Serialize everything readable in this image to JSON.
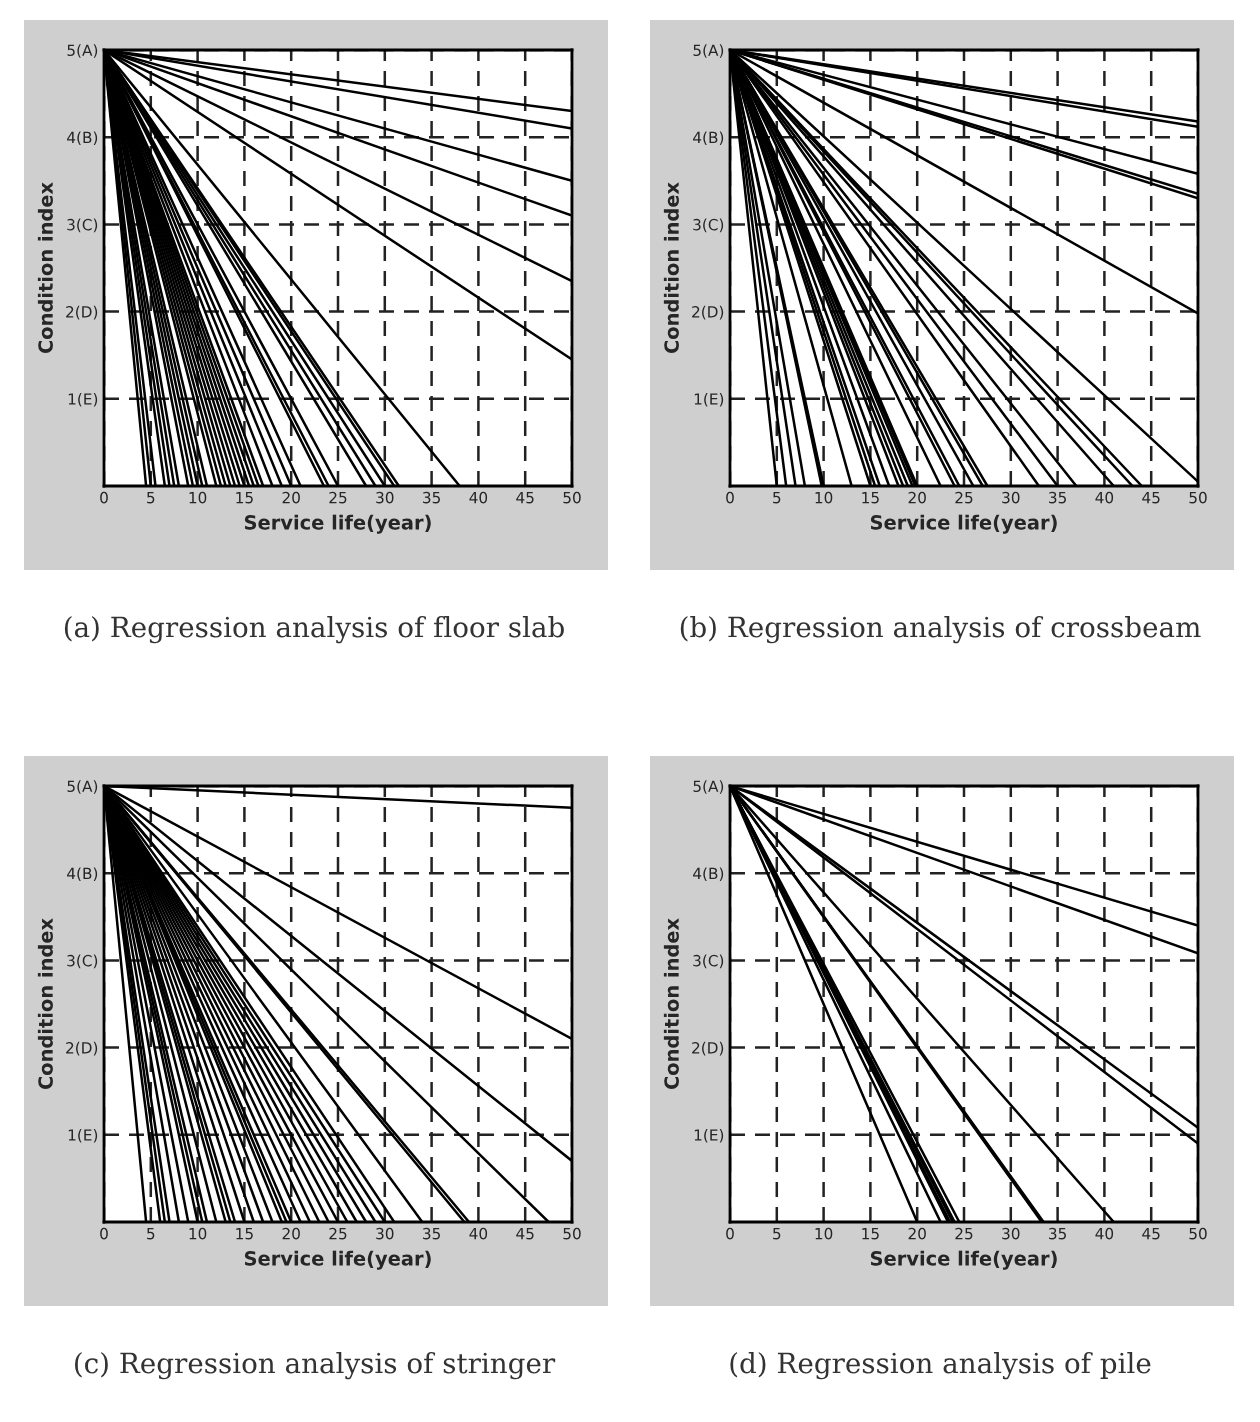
{
  "chart_data": [
    {
      "type": "line",
      "xlabel": "Service life(year)",
      "ylabel": "Condition index",
      "annotations": [
        "(a) Regression analysis of floor slab"
      ],
      "xlim": [
        0,
        50
      ],
      "ylim": [
        0,
        5
      ],
      "xticks": [
        0,
        5,
        10,
        15,
        20,
        25,
        30,
        35,
        40,
        45,
        50
      ],
      "yticks": [
        {
          "value": 1,
          "label": "1(E)"
        },
        {
          "value": 2,
          "label": "2(D)"
        },
        {
          "value": 3,
          "label": "3(C)"
        },
        {
          "value": 4,
          "label": "4(B)"
        },
        {
          "value": 5,
          "label": "5(A)"
        }
      ],
      "grid": true,
      "line_style": "solid",
      "marker": "none",
      "series": [
        {
          "color": "#000000",
          "x": [
            0,
            50
          ],
          "values": [
            5,
            4.3
          ]
        },
        {
          "color": "#000000",
          "x": [
            0,
            50
          ],
          "values": [
            5,
            4.1
          ]
        },
        {
          "color": "#000000",
          "x": [
            0,
            50
          ],
          "values": [
            5,
            3.5
          ]
        },
        {
          "color": "#000000",
          "x": [
            0,
            50
          ],
          "values": [
            5,
            3.1
          ]
        },
        {
          "color": "#000000",
          "x": [
            0,
            50
          ],
          "values": [
            5,
            2.35
          ]
        },
        {
          "color": "#000000",
          "x": [
            0,
            50
          ],
          "values": [
            5,
            1.45
          ]
        },
        {
          "color": "#000000",
          "x": [
            0,
            38
          ],
          "values": [
            5,
            0
          ]
        },
        {
          "color": "#000000",
          "x": [
            0,
            31.5
          ],
          "values": [
            5,
            0
          ]
        },
        {
          "color": "#000000",
          "x": [
            0,
            31
          ],
          "values": [
            5,
            0
          ]
        },
        {
          "color": "#000000",
          "x": [
            0,
            30
          ],
          "values": [
            5,
            0
          ]
        },
        {
          "color": "#000000",
          "x": [
            0,
            29
          ],
          "values": [
            5,
            0
          ]
        },
        {
          "color": "#000000",
          "x": [
            0,
            28
          ],
          "values": [
            5,
            0
          ]
        },
        {
          "color": "#000000",
          "x": [
            0,
            25
          ],
          "values": [
            5,
            0
          ]
        },
        {
          "color": "#000000",
          "x": [
            0,
            24
          ],
          "values": [
            5,
            0
          ]
        },
        {
          "color": "#000000",
          "x": [
            0,
            23.5
          ],
          "values": [
            5,
            0
          ]
        },
        {
          "color": "#000000",
          "x": [
            0,
            21
          ],
          "values": [
            5,
            0
          ]
        },
        {
          "color": "#000000",
          "x": [
            0,
            20
          ],
          "values": [
            5,
            0
          ]
        },
        {
          "color": "#000000",
          "x": [
            0,
            19
          ],
          "values": [
            5,
            0
          ]
        },
        {
          "color": "#000000",
          "x": [
            0,
            18
          ],
          "values": [
            5,
            0
          ]
        },
        {
          "color": "#000000",
          "x": [
            0,
            17
          ],
          "values": [
            5,
            0
          ]
        },
        {
          "color": "#000000",
          "x": [
            0,
            16.5
          ],
          "values": [
            5,
            0
          ]
        },
        {
          "color": "#000000",
          "x": [
            0,
            16
          ],
          "values": [
            5,
            0
          ]
        },
        {
          "color": "#000000",
          "x": [
            0,
            15.5
          ],
          "values": [
            5,
            0
          ]
        },
        {
          "color": "#000000",
          "x": [
            0,
            15
          ],
          "values": [
            5,
            0
          ]
        },
        {
          "color": "#000000",
          "x": [
            0,
            14.5
          ],
          "values": [
            5,
            0
          ]
        },
        {
          "color": "#000000",
          "x": [
            0,
            14
          ],
          "values": [
            5,
            0
          ]
        },
        {
          "color": "#000000",
          "x": [
            0,
            13.5
          ],
          "values": [
            5,
            0
          ]
        },
        {
          "color": "#000000",
          "x": [
            0,
            13
          ],
          "values": [
            5,
            0
          ]
        },
        {
          "color": "#000000",
          "x": [
            0,
            12.5
          ],
          "values": [
            5,
            0
          ]
        },
        {
          "color": "#000000",
          "x": [
            0,
            12
          ],
          "values": [
            5,
            0
          ]
        },
        {
          "color": "#000000",
          "x": [
            0,
            11
          ],
          "values": [
            5,
            0
          ]
        },
        {
          "color": "#000000",
          "x": [
            0,
            10.5
          ],
          "values": [
            5,
            0
          ]
        },
        {
          "color": "#000000",
          "x": [
            0,
            10
          ],
          "values": [
            5,
            0
          ]
        },
        {
          "color": "#000000",
          "x": [
            0,
            9.5
          ],
          "values": [
            5,
            0
          ]
        },
        {
          "color": "#000000",
          "x": [
            0,
            9
          ],
          "values": [
            5,
            0
          ]
        },
        {
          "color": "#000000",
          "x": [
            0,
            8
          ],
          "values": [
            5,
            0
          ]
        },
        {
          "color": "#000000",
          "x": [
            0,
            7.5
          ],
          "values": [
            5,
            0
          ]
        },
        {
          "color": "#000000",
          "x": [
            0,
            7
          ],
          "values": [
            5,
            0
          ]
        },
        {
          "color": "#000000",
          "x": [
            0,
            6.5
          ],
          "values": [
            5,
            0
          ]
        },
        {
          "color": "#000000",
          "x": [
            0,
            5.5
          ],
          "values": [
            5,
            0
          ]
        },
        {
          "color": "#000000",
          "x": [
            0,
            5
          ],
          "values": [
            5,
            0
          ]
        },
        {
          "color": "#000000",
          "x": [
            0,
            4.5
          ],
          "values": [
            5,
            0
          ]
        }
      ]
    },
    {
      "type": "line",
      "xlabel": "Service life(year)",
      "ylabel": "Condition index",
      "annotations": [
        "(b) Regression analysis of crossbeam"
      ],
      "xlim": [
        0,
        50
      ],
      "ylim": [
        0,
        5
      ],
      "xticks": [
        0,
        5,
        10,
        15,
        20,
        25,
        30,
        35,
        40,
        45,
        50
      ],
      "yticks": [
        {
          "value": 1,
          "label": "1(E)"
        },
        {
          "value": 2,
          "label": "2(D)"
        },
        {
          "value": 3,
          "label": "3(C)"
        },
        {
          "value": 4,
          "label": "4(B)"
        },
        {
          "value": 5,
          "label": "5(A)"
        }
      ],
      "grid": true,
      "line_style": "solid",
      "marker": "none",
      "series": [
        {
          "color": "#000000",
          "x": [
            0,
            50
          ],
          "values": [
            5,
            4.18
          ]
        },
        {
          "color": "#000000",
          "x": [
            0,
            50
          ],
          "values": [
            5,
            4.12
          ]
        },
        {
          "color": "#000000",
          "x": [
            0,
            50
          ],
          "values": [
            5,
            3.58
          ]
        },
        {
          "color": "#000000",
          "x": [
            0,
            50
          ],
          "values": [
            5,
            3.35
          ]
        },
        {
          "color": "#000000",
          "x": [
            0,
            50
          ],
          "values": [
            5,
            3.3
          ]
        },
        {
          "color": "#000000",
          "x": [
            0,
            50
          ],
          "values": [
            5,
            1.98
          ]
        },
        {
          "color": "#000000",
          "x": [
            0,
            50
          ],
          "values": [
            5,
            0.05
          ]
        },
        {
          "color": "#000000",
          "x": [
            0,
            44
          ],
          "values": [
            5,
            0
          ]
        },
        {
          "color": "#000000",
          "x": [
            0,
            43
          ],
          "values": [
            5,
            0
          ]
        },
        {
          "color": "#000000",
          "x": [
            0,
            41
          ],
          "values": [
            5,
            0
          ]
        },
        {
          "color": "#000000",
          "x": [
            0,
            37
          ],
          "values": [
            5,
            0
          ]
        },
        {
          "color": "#000000",
          "x": [
            0,
            35
          ],
          "values": [
            5,
            0
          ]
        },
        {
          "color": "#000000",
          "x": [
            0,
            33
          ],
          "values": [
            5,
            0
          ]
        },
        {
          "color": "#000000",
          "x": [
            0,
            27.5
          ],
          "values": [
            5,
            0
          ]
        },
        {
          "color": "#000000",
          "x": [
            0,
            27
          ],
          "values": [
            5,
            0
          ]
        },
        {
          "color": "#000000",
          "x": [
            0,
            26
          ],
          "values": [
            5,
            0
          ]
        },
        {
          "color": "#000000",
          "x": [
            0,
            24.5
          ],
          "values": [
            5,
            0
          ]
        },
        {
          "color": "#000000",
          "x": [
            0,
            24
          ],
          "values": [
            5,
            0
          ]
        },
        {
          "color": "#000000",
          "x": [
            0,
            22.5
          ],
          "values": [
            5,
            0
          ]
        },
        {
          "color": "#000000",
          "x": [
            0,
            20
          ],
          "values": [
            5,
            0
          ]
        },
        {
          "color": "#000000",
          "x": [
            0,
            19.8
          ],
          "values": [
            5,
            0
          ]
        },
        {
          "color": "#000000",
          "x": [
            0,
            19.5
          ],
          "values": [
            5,
            0
          ]
        },
        {
          "color": "#000000",
          "x": [
            0,
            19
          ],
          "values": [
            5,
            0
          ]
        },
        {
          "color": "#000000",
          "x": [
            0,
            18.5
          ],
          "values": [
            5,
            0
          ]
        },
        {
          "color": "#000000",
          "x": [
            0,
            18
          ],
          "values": [
            5,
            0
          ]
        },
        {
          "color": "#000000",
          "x": [
            0,
            17
          ],
          "values": [
            5,
            0
          ]
        },
        {
          "color": "#000000",
          "x": [
            0,
            16
          ],
          "values": [
            5,
            0
          ]
        },
        {
          "color": "#000000",
          "x": [
            0,
            15.5
          ],
          "values": [
            5,
            0
          ]
        },
        {
          "color": "#000000",
          "x": [
            0,
            15
          ],
          "values": [
            5,
            0
          ]
        },
        {
          "color": "#000000",
          "x": [
            0,
            13
          ],
          "values": [
            5,
            0
          ]
        },
        {
          "color": "#000000",
          "x": [
            0,
            10
          ],
          "values": [
            5,
            0
          ]
        },
        {
          "color": "#000000",
          "x": [
            0,
            9.8
          ],
          "values": [
            5,
            0
          ]
        },
        {
          "color": "#000000",
          "x": [
            0,
            8
          ],
          "values": [
            5,
            0
          ]
        },
        {
          "color": "#000000",
          "x": [
            0,
            7
          ],
          "values": [
            5,
            0
          ]
        },
        {
          "color": "#000000",
          "x": [
            0,
            6
          ],
          "values": [
            5,
            0
          ]
        },
        {
          "color": "#000000",
          "x": [
            0,
            5
          ],
          "values": [
            5,
            0
          ]
        }
      ]
    },
    {
      "type": "line",
      "xlabel": "Service life(year)",
      "ylabel": "Condition index",
      "annotations": [
        "(c) Regression analysis of stringer"
      ],
      "xlim": [
        0,
        50
      ],
      "ylim": [
        0,
        5
      ],
      "xticks": [
        0,
        5,
        10,
        15,
        20,
        25,
        30,
        35,
        40,
        45,
        50
      ],
      "yticks": [
        {
          "value": 1,
          "label": "1(E)"
        },
        {
          "value": 2,
          "label": "2(D)"
        },
        {
          "value": 3,
          "label": "3(C)"
        },
        {
          "value": 4,
          "label": "4(B)"
        },
        {
          "value": 5,
          "label": "5(A)"
        }
      ],
      "grid": true,
      "line_style": "solid",
      "marker": "none",
      "series": [
        {
          "color": "#000000",
          "x": [
            0,
            50
          ],
          "values": [
            5,
            4.75
          ]
        },
        {
          "color": "#000000",
          "x": [
            0,
            50
          ],
          "values": [
            5,
            2.1
          ]
        },
        {
          "color": "#000000",
          "x": [
            0,
            50
          ],
          "values": [
            5,
            0.7
          ]
        },
        {
          "color": "#000000",
          "x": [
            0,
            47.5
          ],
          "values": [
            5,
            0
          ]
        },
        {
          "color": "#000000",
          "x": [
            0,
            39
          ],
          "values": [
            5,
            0
          ]
        },
        {
          "color": "#000000",
          "x": [
            0,
            38.5
          ],
          "values": [
            5,
            0
          ]
        },
        {
          "color": "#000000",
          "x": [
            0,
            34
          ],
          "values": [
            5,
            0
          ]
        },
        {
          "color": "#000000",
          "x": [
            0,
            31
          ],
          "values": [
            5,
            0
          ]
        },
        {
          "color": "#000000",
          "x": [
            0,
            30
          ],
          "values": [
            5,
            0
          ]
        },
        {
          "color": "#000000",
          "x": [
            0,
            29
          ],
          "values": [
            5,
            0
          ]
        },
        {
          "color": "#000000",
          "x": [
            0,
            28
          ],
          "values": [
            5,
            0
          ]
        },
        {
          "color": "#000000",
          "x": [
            0,
            27
          ],
          "values": [
            5,
            0
          ]
        },
        {
          "color": "#000000",
          "x": [
            0,
            26
          ],
          "values": [
            5,
            0
          ]
        },
        {
          "color": "#000000",
          "x": [
            0,
            25
          ],
          "values": [
            5,
            0
          ]
        },
        {
          "color": "#000000",
          "x": [
            0,
            24
          ],
          "values": [
            5,
            0
          ]
        },
        {
          "color": "#000000",
          "x": [
            0,
            23
          ],
          "values": [
            5,
            0
          ]
        },
        {
          "color": "#000000",
          "x": [
            0,
            22
          ],
          "values": [
            5,
            0
          ]
        },
        {
          "color": "#000000",
          "x": [
            0,
            21
          ],
          "values": [
            5,
            0
          ]
        },
        {
          "color": "#000000",
          "x": [
            0,
            20
          ],
          "values": [
            5,
            0
          ]
        },
        {
          "color": "#000000",
          "x": [
            0,
            19.5
          ],
          "values": [
            5,
            0
          ]
        },
        {
          "color": "#000000",
          "x": [
            0,
            19
          ],
          "values": [
            5,
            0
          ]
        },
        {
          "color": "#000000",
          "x": [
            0,
            18
          ],
          "values": [
            5,
            0
          ]
        },
        {
          "color": "#000000",
          "x": [
            0,
            17
          ],
          "values": [
            5,
            0
          ]
        },
        {
          "color": "#000000",
          "x": [
            0,
            16
          ],
          "values": [
            5,
            0
          ]
        },
        {
          "color": "#000000",
          "x": [
            0,
            15
          ],
          "values": [
            5,
            0
          ]
        },
        {
          "color": "#000000",
          "x": [
            0,
            14
          ],
          "values": [
            5,
            0
          ]
        },
        {
          "color": "#000000",
          "x": [
            0,
            13.5
          ],
          "values": [
            5,
            0
          ]
        },
        {
          "color": "#000000",
          "x": [
            0,
            13
          ],
          "values": [
            5,
            0
          ]
        },
        {
          "color": "#000000",
          "x": [
            0,
            12
          ],
          "values": [
            5,
            0
          ]
        },
        {
          "color": "#000000",
          "x": [
            0,
            11
          ],
          "values": [
            5,
            0
          ]
        },
        {
          "color": "#000000",
          "x": [
            0,
            10.5
          ],
          "values": [
            5,
            0
          ]
        },
        {
          "color": "#000000",
          "x": [
            0,
            10
          ],
          "values": [
            5,
            0
          ]
        },
        {
          "color": "#000000",
          "x": [
            0,
            9
          ],
          "values": [
            5,
            0
          ]
        },
        {
          "color": "#000000",
          "x": [
            0,
            8
          ],
          "values": [
            5,
            0
          ]
        },
        {
          "color": "#000000",
          "x": [
            0,
            7
          ],
          "values": [
            5,
            0
          ]
        },
        {
          "color": "#000000",
          "x": [
            0,
            6.5
          ],
          "values": [
            5,
            0
          ]
        },
        {
          "color": "#000000",
          "x": [
            0,
            6
          ],
          "values": [
            5,
            0
          ]
        },
        {
          "color": "#000000",
          "x": [
            0,
            4.5
          ],
          "values": [
            5,
            0
          ]
        }
      ]
    },
    {
      "type": "line",
      "xlabel": "Service life(year)",
      "ylabel": "Condition index",
      "annotations": [
        "(d) Regression analysis of pile"
      ],
      "xlim": [
        0,
        50
      ],
      "ylim": [
        0,
        5
      ],
      "xticks": [
        0,
        5,
        10,
        15,
        20,
        25,
        30,
        35,
        40,
        45,
        50
      ],
      "yticks": [
        {
          "value": 1,
          "label": "1(E)"
        },
        {
          "value": 2,
          "label": "2(D)"
        },
        {
          "value": 3,
          "label": "3(C)"
        },
        {
          "value": 4,
          "label": "4(B)"
        },
        {
          "value": 5,
          "label": "5(A)"
        }
      ],
      "grid": true,
      "line_style": "solid",
      "marker": "none",
      "series": [
        {
          "color": "#000000",
          "x": [
            0,
            50
          ],
          "values": [
            5,
            3.4
          ]
        },
        {
          "color": "#000000",
          "x": [
            0,
            50
          ],
          "values": [
            5,
            3.08
          ]
        },
        {
          "color": "#000000",
          "x": [
            0,
            50
          ],
          "values": [
            5,
            1.08
          ]
        },
        {
          "color": "#000000",
          "x": [
            0,
            50
          ],
          "values": [
            5,
            0.9
          ]
        },
        {
          "color": "#000000",
          "x": [
            0,
            41
          ],
          "values": [
            5,
            0
          ]
        },
        {
          "color": "#000000",
          "x": [
            0,
            33.5
          ],
          "values": [
            5,
            0
          ]
        },
        {
          "color": "#000000",
          "x": [
            0,
            33.3
          ],
          "values": [
            5,
            0
          ]
        },
        {
          "color": "#000000",
          "x": [
            0,
            24.5
          ],
          "values": [
            5,
            0
          ]
        },
        {
          "color": "#000000",
          "x": [
            0,
            24
          ],
          "values": [
            5,
            0
          ]
        },
        {
          "color": "#000000",
          "x": [
            0,
            23.8
          ],
          "values": [
            5,
            0
          ]
        },
        {
          "color": "#000000",
          "x": [
            0,
            23.5
          ],
          "values": [
            5,
            0
          ]
        },
        {
          "color": "#000000",
          "x": [
            0,
            23.3
          ],
          "values": [
            5,
            0
          ]
        },
        {
          "color": "#000000",
          "x": [
            0,
            22.5
          ],
          "values": [
            5,
            0
          ]
        },
        {
          "color": "#000000",
          "x": [
            0,
            20
          ],
          "values": [
            5,
            0
          ]
        }
      ]
    }
  ]
}
